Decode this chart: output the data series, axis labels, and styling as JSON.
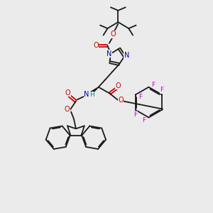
{
  "background_color": "#ebebeb",
  "figsize": [
    3.0,
    3.0
  ],
  "dpi": 100,
  "bond_color": "#1a1a1a",
  "N_color": "#0000cc",
  "O_color": "#cc0000",
  "F_color": "#cc00cc",
  "H_color": "#2a8080",
  "bond_width": 1.3,
  "dbo": 0.05,
  "xlim": [
    0,
    10
  ],
  "ylim": [
    0,
    10
  ]
}
